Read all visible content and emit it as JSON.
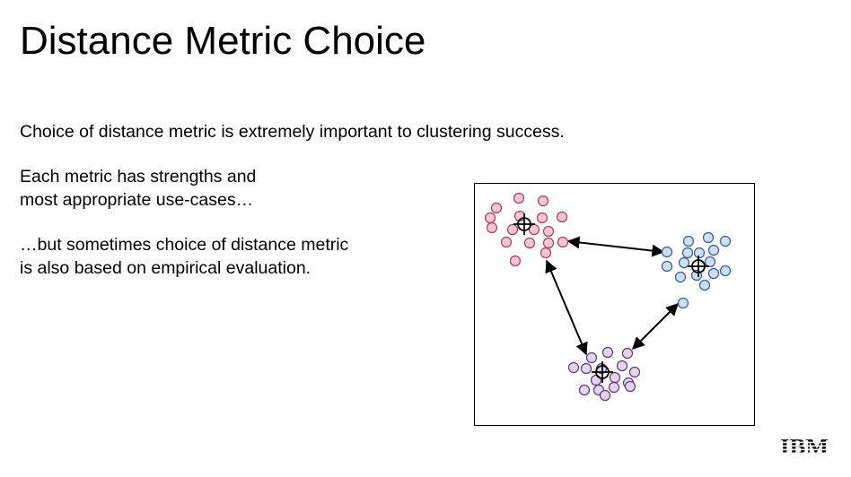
{
  "slide": {
    "title": "Distance Metric Choice",
    "paragraphs": [
      [
        "Choice of distance metric is extremely important to clustering success."
      ],
      [
        "Each metric has strengths and",
        "most appropriate use-cases…"
      ],
      [
        "…but sometimes choice of distance metric",
        "is also based on empirical evaluation."
      ]
    ]
  },
  "diagram": {
    "clusters": [
      {
        "name": "pink-cluster",
        "fill": "#f7c6d3",
        "stroke": "#b03a5b"
      },
      {
        "name": "blue-cluster",
        "fill": "#cfdff3",
        "stroke": "#2f5f9e"
      },
      {
        "name": "purple-cluster",
        "fill": "#e4d4ef",
        "stroke": "#5a3b82"
      }
    ],
    "centroid_icon": "crosshair-circle-icon",
    "arrows": "double-headed"
  },
  "logo": {
    "text": "IBM",
    "color": "#000000"
  }
}
